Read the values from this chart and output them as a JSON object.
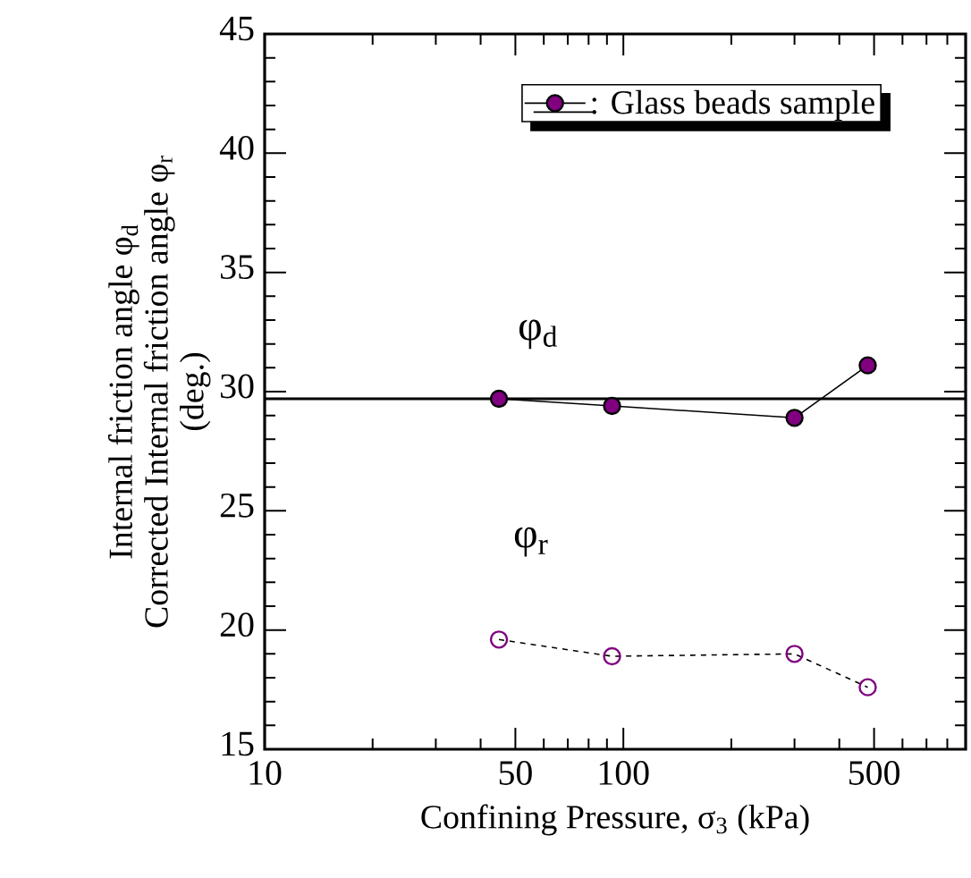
{
  "chart_data": {
    "type": "line",
    "xlabel": "Confining Pressure,  σ$_{3}$ (kPa)",
    "ylabel": [
      "Internal friction angle φ$_{d}$",
      "Corrected Internal friction angle φ$_{r}$",
      "(deg.)"
    ],
    "x": [
      45,
      93,
      300,
      480
    ],
    "series": [
      {
        "name": ": Glass beads sample",
        "color": "#800080",
        "values": [
          29.7,
          29.4,
          28.9,
          31.1
        ],
        "line_style": "solid"
      },
      {
        "color": "#800080",
        "values": [
          19.6,
          18.9,
          19.0,
          17.6
        ],
        "line_style": "dashed"
      }
    ],
    "log": "x",
    "xlim": [
      10,
      900
    ],
    "ylim": [
      15,
      45
    ],
    "xticks": [
      10,
      {
        "value": 20,
        "label": null
      },
      {
        "value": 30,
        "label": null
      },
      {
        "value": 40,
        "label": null
      },
      50,
      {
        "value": 60,
        "label": null
      },
      {
        "value": 70,
        "label": null
      },
      {
        "value": 80,
        "label": null
      },
      {
        "value": 90,
        "label": null
      },
      100,
      {
        "value": 200,
        "label": null
      },
      {
        "value": 300,
        "label": null
      },
      {
        "value": 400,
        "label": null
      },
      500,
      {
        "value": 600,
        "label": null
      },
      {
        "value": 700,
        "label": null
      },
      {
        "value": 800,
        "label": null
      },
      {
        "value": 900,
        "label": null
      }
    ],
    "yticks": [
      15,
      {
        "value": 16,
        "label": null
      },
      {
        "value": 17,
        "label": null
      },
      {
        "value": 18,
        "label": null
      },
      {
        "value": 19,
        "label": null
      },
      20,
      {
        "value": 21,
        "label": null
      },
      {
        "value": 22,
        "label": null
      },
      {
        "value": 23,
        "label": null
      },
      {
        "value": 24,
        "label": null
      },
      25,
      {
        "value": 26,
        "label": null
      },
      {
        "value": 27,
        "label": null
      },
      {
        "value": 28,
        "label": null
      },
      {
        "value": 29,
        "label": null
      },
      30,
      {
        "value": 31,
        "label": null
      },
      {
        "value": 32,
        "label": null
      },
      {
        "value": 33,
        "label": null
      },
      {
        "value": 34,
        "label": null
      },
      35,
      {
        "value": 36,
        "label": null
      },
      {
        "value": 37,
        "label": null
      },
      {
        "value": 38,
        "label": null
      },
      {
        "value": 39,
        "label": null
      },
      40,
      {
        "value": 41,
        "label": null
      },
      {
        "value": 42,
        "label": null
      },
      {
        "value": 43,
        "label": null
      },
      {
        "value": 44,
        "label": null
      },
      45
    ],
    "ref_lines": [
      {
        "axis": "y",
        "value": 29.7
      }
    ],
    "annotations": [
      "φ$_{d}$",
      "φ$_{r}$"
    ],
    "marker": "circle",
    "legend": "top right",
    "grid": false
  }
}
